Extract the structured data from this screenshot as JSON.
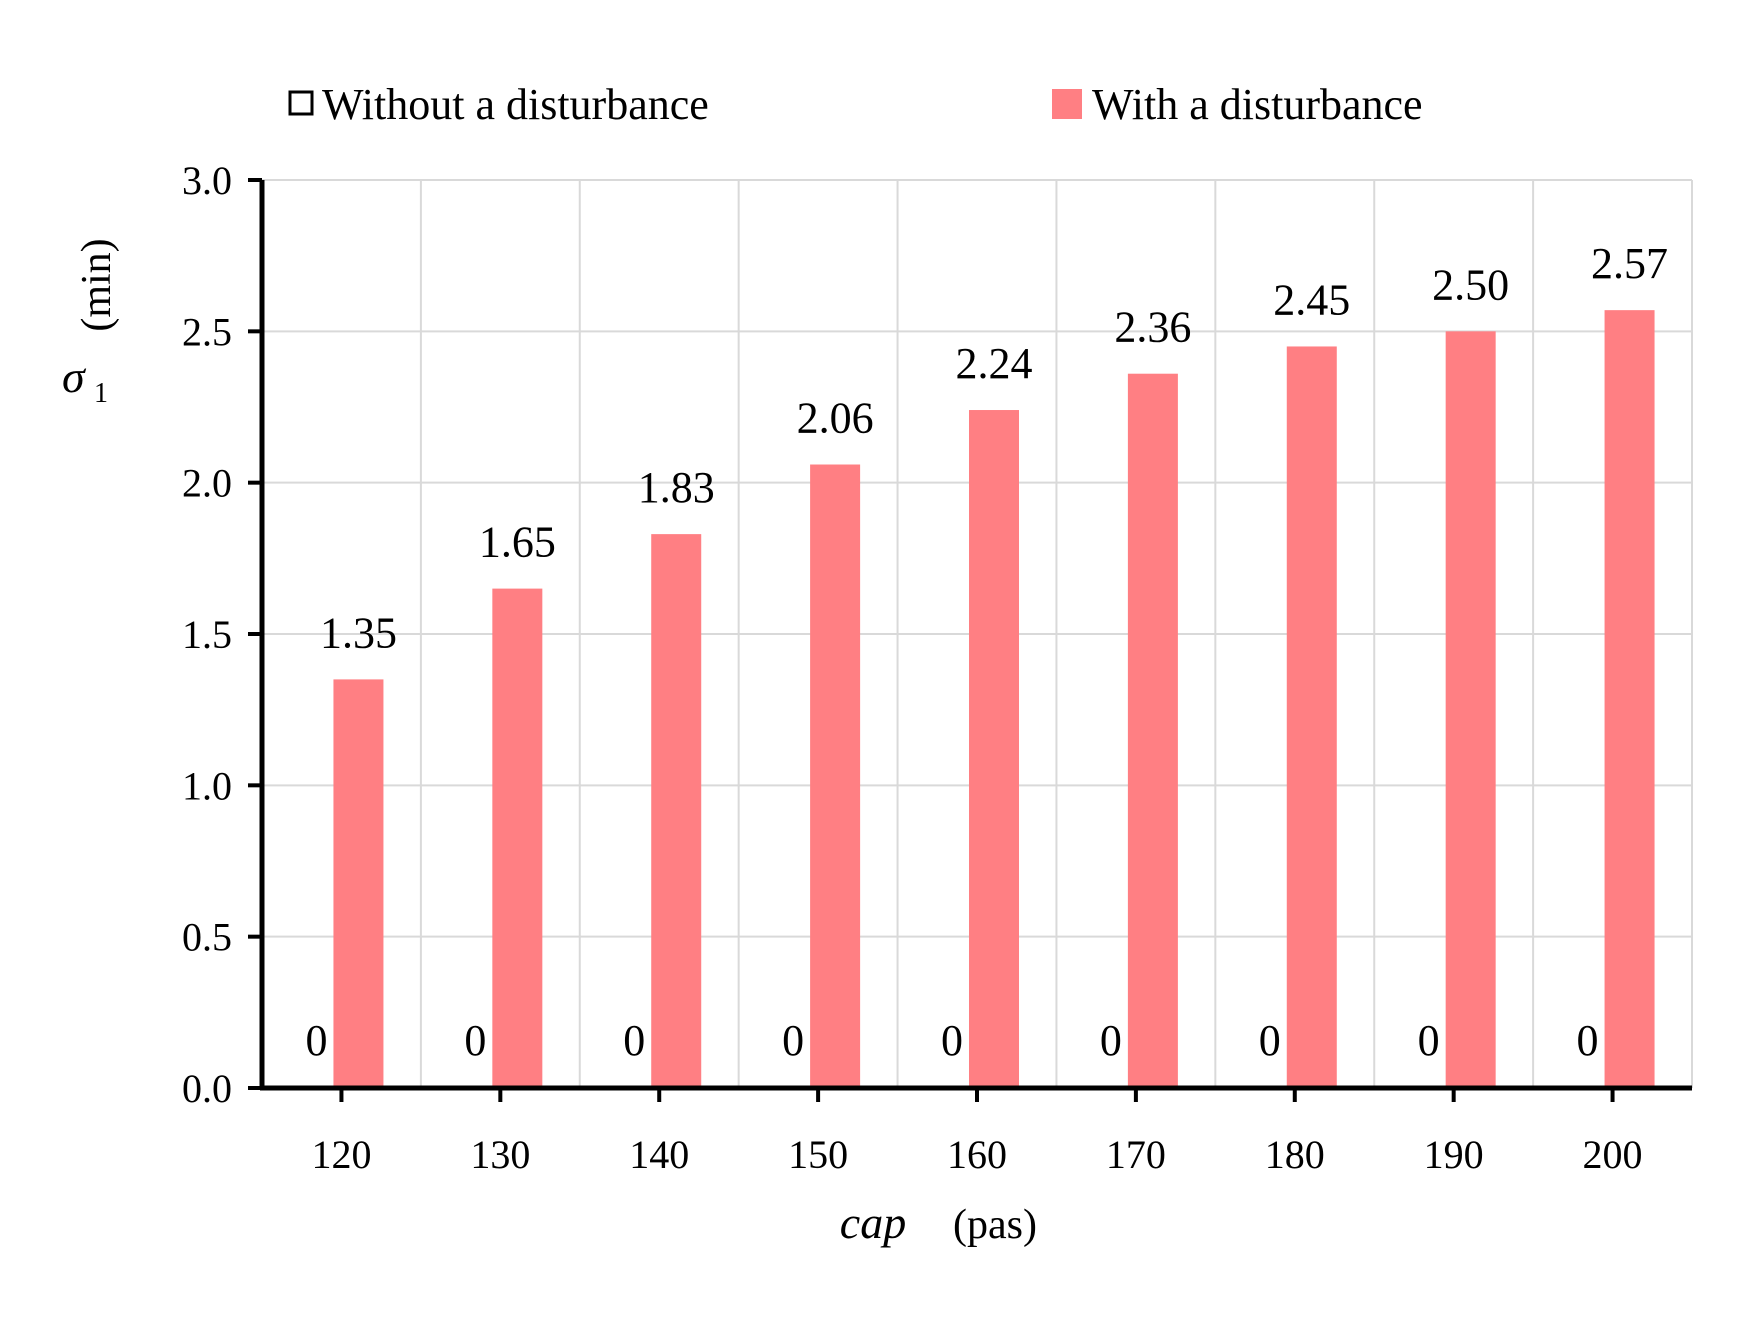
{
  "chart_data": {
    "type": "bar",
    "categories": [
      "120",
      "130",
      "140",
      "150",
      "160",
      "170",
      "180",
      "190",
      "200"
    ],
    "series": [
      {
        "name": "Without a disturbance",
        "values": [
          0,
          0,
          0,
          0,
          0,
          0,
          0,
          0,
          0
        ],
        "labels": [
          "0",
          "0",
          "0",
          "0",
          "0",
          "0",
          "0",
          "0",
          "0"
        ],
        "color": "#ffffff",
        "edge_color": "#000000"
      },
      {
        "name": "With a disturbance",
        "values": [
          1.35,
          1.65,
          1.83,
          2.06,
          2.24,
          2.36,
          2.45,
          2.5,
          2.57
        ],
        "labels": [
          "1.35",
          "1.65",
          "1.83",
          "2.06",
          "2.24",
          "2.36",
          "2.45",
          "2.50",
          "2.57"
        ],
        "color": "#ff7f83"
      }
    ],
    "xlabel": {
      "var": "cap",
      "unit": "(pas)"
    },
    "ylabel": {
      "symbol": "σ",
      "subscript": "1",
      "unit": "(min)"
    },
    "ylim": [
      0,
      3.0
    ],
    "yticks": [
      "0.0",
      "0.5",
      "1.0",
      "1.5",
      "2.0",
      "2.5",
      "3.0"
    ],
    "grid": true,
    "legend_position": "top"
  }
}
